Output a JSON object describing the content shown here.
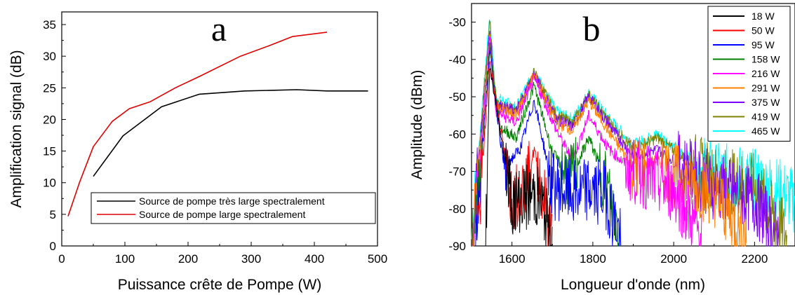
{
  "chart_data": [
    {
      "type": "line",
      "panel_label": "a",
      "xlabel": "Puissance crête de Pompe (W)",
      "ylabel": "Amplification signal (dB)",
      "xlim": [
        0,
        500
      ],
      "ylim": [
        0,
        37
      ],
      "xticks": [
        0,
        100,
        200,
        300,
        400,
        500
      ],
      "yticks": [
        0,
        5,
        10,
        15,
        20,
        25,
        30,
        35
      ],
      "legend_position": "lower-center",
      "series": [
        {
          "name": "Source de pompe très large spectralement",
          "color": "#000000",
          "x": [
            50,
            97,
            158,
            218,
            290,
            372,
            420,
            485
          ],
          "y": [
            11.0,
            17.4,
            22.0,
            24.0,
            24.5,
            24.7,
            24.5,
            24.5
          ]
        },
        {
          "name": "Source de pompe large spectralement",
          "color": "#e00000",
          "x": [
            10,
            28,
            50,
            80,
            107,
            140,
            180,
            218,
            283,
            327,
            365,
            420
          ],
          "y": [
            4.7,
            10.0,
            15.7,
            19.7,
            21.7,
            22.8,
            25.0,
            26.8,
            30.0,
            31.6,
            33.1,
            33.8
          ]
        }
      ]
    },
    {
      "type": "line",
      "panel_label": "b",
      "xlabel": "Longueur d'onde (nm)",
      "ylabel": "Amplitude (dBm)",
      "xlim": [
        1500,
        2300
      ],
      "ylim": [
        -90,
        -25
      ],
      "xticks": [
        1600,
        1800,
        2000,
        2200
      ],
      "yticks": [
        -30,
        -40,
        -50,
        -60,
        -70,
        -80,
        -90
      ],
      "legend_position": "top-right",
      "series": [
        {
          "name": "18 W",
          "color": "#000000",
          "x": [
            1535,
            1545,
            1600,
            1640,
            1655,
            1670,
            1700
          ],
          "y": [
            -88,
            -42,
            -78,
            -77,
            -76,
            -78,
            -88
          ]
        },
        {
          "name": "50 W",
          "color": "#ff0000",
          "x": [
            1515,
            1545,
            1600,
            1640,
            1655,
            1670,
            1700
          ],
          "y": [
            -88,
            -40,
            -78,
            -72,
            -64,
            -72,
            -88
          ]
        },
        {
          "name": "95 W",
          "color": "#0000ff",
          "x": [
            1510,
            1545,
            1580,
            1620,
            1655,
            1700,
            1760,
            1790,
            1830,
            1870
          ],
          "y": [
            -88,
            -38,
            -69,
            -64,
            -51,
            -74,
            -76,
            -75,
            -76,
            -88
          ]
        },
        {
          "name": "158 W",
          "color": "#008000",
          "x": [
            1508,
            1545,
            1570,
            1610,
            1655,
            1700,
            1745,
            1790,
            1830,
            1870
          ],
          "y": [
            -88,
            -36,
            -58,
            -61,
            -47,
            -65,
            -72,
            -61,
            -72,
            -88
          ]
        },
        {
          "name": "216 W",
          "color": "#ff00ff",
          "x": [
            1505,
            1545,
            1560,
            1610,
            1655,
            1710,
            1750,
            1790,
            1840,
            1900,
            2000,
            2070
          ],
          "y": [
            -88,
            -34,
            -54,
            -57,
            -45,
            -59,
            -67,
            -55,
            -64,
            -70,
            -75,
            -88
          ]
        },
        {
          "name": "291 W",
          "color": "#ff8000",
          "x": [
            1503,
            1545,
            1560,
            1610,
            1655,
            1710,
            1750,
            1790,
            1850,
            1900,
            1960,
            2000,
            2100,
            2180
          ],
          "y": [
            -88,
            -33,
            -53,
            -55,
            -44,
            -57,
            -59,
            -51,
            -61,
            -69,
            -67,
            -71,
            -76,
            -88
          ]
        },
        {
          "name": "375 W",
          "color": "#8000ff",
          "x": [
            1502,
            1545,
            1560,
            1610,
            1655,
            1710,
            1750,
            1790,
            1850,
            1900,
            1960,
            2010,
            2100,
            2200,
            2260
          ],
          "y": [
            -88,
            -32,
            -52,
            -54,
            -44,
            -56,
            -58,
            -50,
            -59,
            -66,
            -64,
            -68,
            -74,
            -78,
            -88
          ]
        },
        {
          "name": "419 W",
          "color": "#808000",
          "x": [
            1501,
            1545,
            1560,
            1610,
            1655,
            1710,
            1750,
            1790,
            1850,
            1900,
            1960,
            2020,
            2100,
            2200,
            2280
          ],
          "y": [
            -88,
            -30,
            -51,
            -54,
            -43.5,
            -55,
            -57,
            -49.5,
            -58,
            -64,
            -61,
            -66,
            -72,
            -74,
            -88
          ]
        },
        {
          "name": "465 W",
          "color": "#00ffff",
          "x": [
            1500,
            1545,
            1560,
            1610,
            1655,
            1710,
            1750,
            1790,
            1850,
            1900,
            1960,
            2020,
            2100,
            2180,
            2260,
            2300
          ],
          "y": [
            -88,
            -28,
            -50,
            -53,
            -43,
            -54,
            -56,
            -49,
            -57,
            -63,
            -60,
            -65,
            -71,
            -72,
            -75,
            -78
          ]
        }
      ]
    }
  ]
}
